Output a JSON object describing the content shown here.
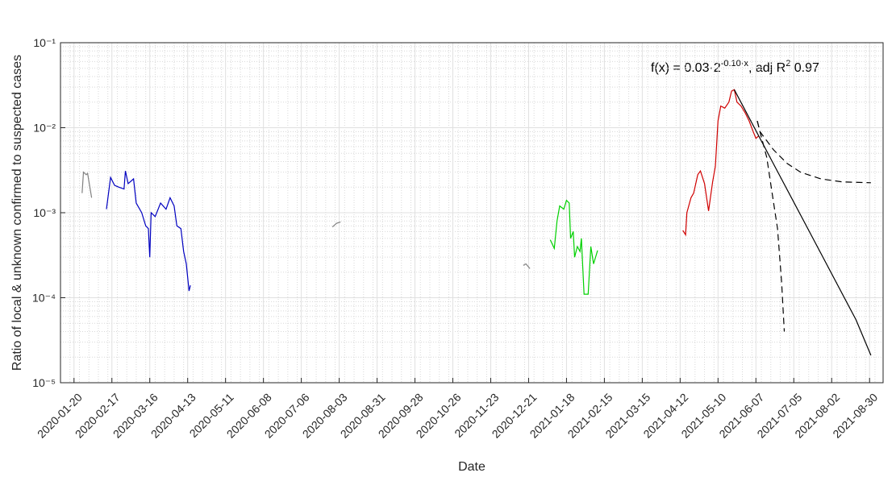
{
  "chart_data": {
    "type": "line",
    "xlabel": "Date",
    "ylabel": "Ratio of local & unknown confirmed to suspected cases",
    "annotation": [
      "f(x) = 0.03·2",
      "-0.10·x",
      ", adj R",
      "2",
      " 0.97"
    ],
    "ylog": true,
    "grid": true,
    "minor_grid": true,
    "xlim": [
      "2020-01-10",
      "2021-09-09"
    ],
    "xticks": [
      "2020-01-20",
      "2020-02-17",
      "2020-03-16",
      "2020-04-13",
      "2020-05-11",
      "2020-06-08",
      "2020-07-06",
      "2020-08-03",
      "2020-08-31",
      "2020-09-28",
      "2020-10-26",
      "2020-11-23",
      "2020-12-21",
      "2021-01-18",
      "2021-02-15",
      "2021-03-15",
      "2021-04-12",
      "2021-05-10",
      "2021-06-07",
      "2021-07-05",
      "2021-08-02",
      "2021-08-30"
    ],
    "ylim": [
      1e-05,
      0.1
    ],
    "yticks": [
      {
        "value": 1e-05,
        "label": "10⁻⁵"
      },
      {
        "value": 0.0001,
        "label": "10⁻⁴"
      },
      {
        "value": 0.001,
        "label": "10⁻³"
      },
      {
        "value": 0.01,
        "label": "10⁻²"
      },
      {
        "value": 0.1,
        "label": "10⁻¹"
      }
    ],
    "series": [
      {
        "color": "#808080",
        "dash": false,
        "x": [
          "2020-01-26",
          "2020-01-27",
          "2020-01-29",
          "2020-01-30",
          "2020-02-02"
        ],
        "values": [
          0.0017,
          0.003,
          0.0028,
          0.0029,
          0.0015
        ]
      },
      {
        "color": "#0000c0",
        "dash": false,
        "x": [
          "2020-02-13",
          "2020-02-16",
          "2020-02-19",
          "2020-02-22",
          "2020-02-26",
          "2020-02-27",
          "2020-02-29",
          "2020-03-04",
          "2020-03-06",
          "2020-03-10",
          "2020-03-13",
          "2020-03-15",
          "2020-03-16",
          "2020-03-17",
          "2020-03-20",
          "2020-03-24",
          "2020-03-28",
          "2020-03-31",
          "2020-04-03",
          "2020-04-05",
          "2020-04-08",
          "2020-04-10",
          "2020-04-12",
          "2020-04-14",
          "2020-04-15"
        ],
        "values": [
          0.0011,
          0.0026,
          0.0021,
          0.002,
          0.0019,
          0.0031,
          0.0022,
          0.0025,
          0.0013,
          0.001,
          0.0007,
          0.00065,
          0.0003,
          0.001,
          0.0009,
          0.0013,
          0.0011,
          0.0015,
          0.0012,
          0.0007,
          0.00065,
          0.00035,
          0.00025,
          0.00012,
          0.00014
        ]
      },
      {
        "color": "#808080",
        "dash": false,
        "x": [
          "2020-07-29",
          "2020-08-01",
          "2020-08-04"
        ],
        "values": [
          0.00068,
          0.00075,
          0.00078
        ]
      },
      {
        "color": "#808080",
        "dash": false,
        "x": [
          "2020-12-17",
          "2020-12-19",
          "2020-12-22"
        ],
        "values": [
          0.00024,
          0.00025,
          0.00022
        ]
      },
      {
        "color": "#00d000",
        "dash": false,
        "x": [
          "2021-01-06",
          "2021-01-09",
          "2021-01-11",
          "2021-01-13",
          "2021-01-16",
          "2021-01-18",
          "2021-01-20",
          "2021-01-21",
          "2021-01-23",
          "2021-01-24",
          "2021-01-26",
          "2021-01-28",
          "2021-01-29",
          "2021-01-31",
          "2021-02-03",
          "2021-02-05",
          "2021-02-07",
          "2021-02-10"
        ],
        "values": [
          0.00048,
          0.00038,
          0.0008,
          0.0012,
          0.0011,
          0.0014,
          0.0013,
          0.0005,
          0.0006,
          0.0003,
          0.0004,
          0.00035,
          0.0005,
          0.00011,
          0.00011,
          0.0004,
          0.00025,
          0.00036
        ]
      },
      {
        "color": "#d00000",
        "dash": false,
        "x": [
          "2021-04-14",
          "2021-04-16",
          "2021-04-17",
          "2021-04-20",
          "2021-04-22",
          "2021-04-25",
          "2021-04-27",
          "2021-04-30",
          "2021-05-03",
          "2021-05-06",
          "2021-05-08",
          "2021-05-10",
          "2021-05-12",
          "2021-05-15",
          "2021-05-18",
          "2021-05-20",
          "2021-05-22",
          "2021-05-24",
          "2021-05-27",
          "2021-05-30",
          "2021-06-02",
          "2021-06-05",
          "2021-06-07",
          "2021-06-09"
        ],
        "values": [
          0.00062,
          0.00055,
          0.001,
          0.0015,
          0.0017,
          0.0028,
          0.0031,
          0.0022,
          0.00105,
          0.0023,
          0.0035,
          0.012,
          0.018,
          0.017,
          0.02,
          0.027,
          0.028,
          0.02,
          0.018,
          0.015,
          0.012,
          0.009,
          0.0075,
          0.008
        ]
      },
      {
        "color": "#000000",
        "dash": false,
        "x": [
          "2021-05-22",
          "2021-06-21",
          "2021-07-21",
          "2021-08-20",
          "2021-08-31"
        ],
        "values": [
          0.028,
          0.0035,
          0.00044,
          5.5e-05,
          2.1e-05
        ]
      },
      {
        "color": "#000000",
        "dash": true,
        "x": [
          "2021-06-08",
          "2021-06-10",
          "2021-06-20",
          "2021-06-30",
          "2021-07-10",
          "2021-07-25",
          "2021-08-10",
          "2021-08-31"
        ],
        "values": [
          0.012,
          0.009,
          0.0055,
          0.0038,
          0.003,
          0.0025,
          0.0023,
          0.00225
        ]
      },
      {
        "color": "#000000",
        "dash": true,
        "x": [
          "2021-06-08",
          "2021-06-10",
          "2021-06-15",
          "2021-06-19",
          "2021-06-23",
          "2021-06-26",
          "2021-06-28"
        ],
        "values": [
          0.012,
          0.009,
          0.0045,
          0.0017,
          0.00065,
          0.00015,
          4e-05
        ]
      }
    ]
  }
}
